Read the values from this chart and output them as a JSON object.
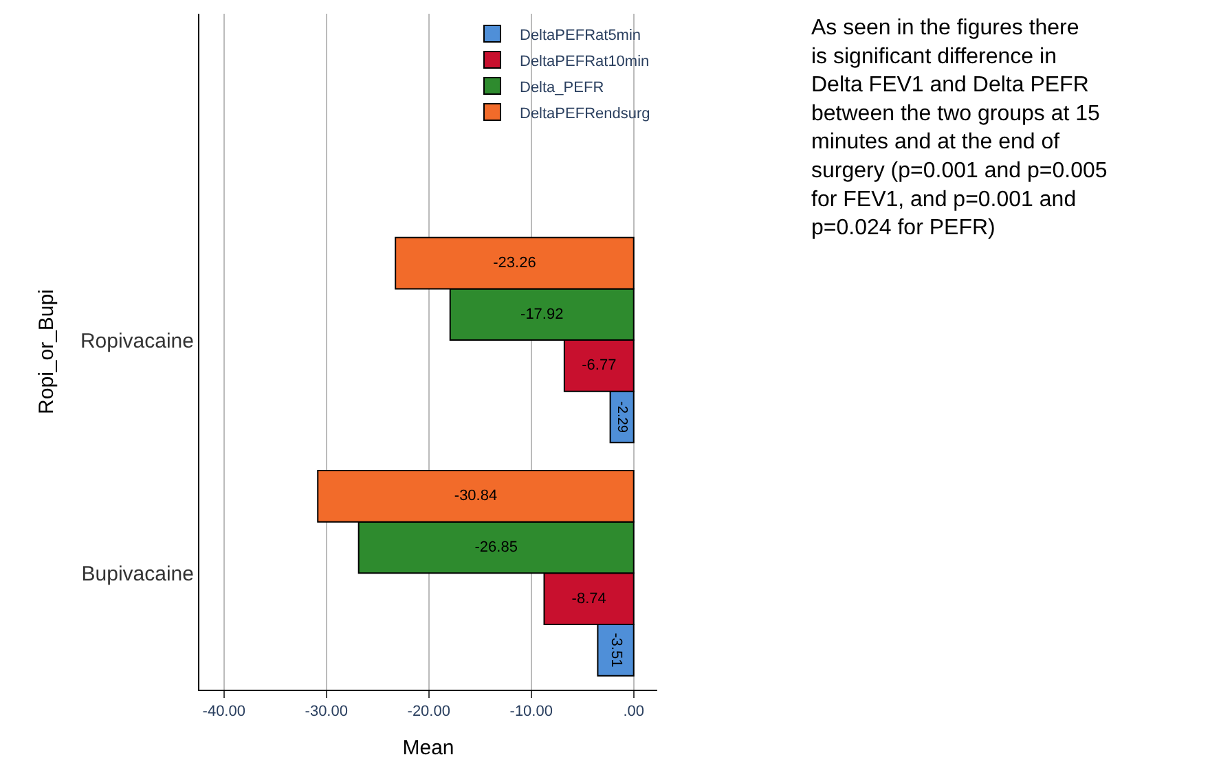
{
  "chart_data": {
    "type": "bar",
    "orientation": "horizontal",
    "categories": [
      "Ropivacaine",
      "Bupivacaine"
    ],
    "series": [
      {
        "name": "DeltaPEFRat5min",
        "color": "#4f8fd8",
        "values": [
          -2.29,
          -3.51
        ]
      },
      {
        "name": "DeltaPEFRat10min",
        "color": "#c8102e",
        "values": [
          -6.77,
          -8.74
        ]
      },
      {
        "name": "Delta_PEFR",
        "color": "#2e8b2e",
        "values": [
          -17.92,
          -26.85
        ]
      },
      {
        "name": "DeltaPEFRendsurg",
        "color": "#f26b2a",
        "values": [
          -23.26,
          -30.84
        ]
      }
    ],
    "xlim": [
      -42.4,
      2.3
    ],
    "xticks": [
      {
        "value": -40,
        "label": "-40.00"
      },
      {
        "value": -30,
        "label": "-30.00"
      },
      {
        "value": -20,
        "label": "-20.00"
      },
      {
        "value": -10,
        "label": "-10.00"
      },
      {
        "value": 0,
        "label": ".00"
      }
    ],
    "xlabel": "Mean",
    "ylabel": "Ropi_or_Bupi",
    "grid": "x",
    "legend": "top right",
    "data_labels": true,
    "annotations": [
      "As seen in the figures there is significant difference in Delta FEV1 and Delta PEFR between the two groups at 15 minutes and at the end of surgery (p=0.001 and p=0.005 for FEV1, and p=0.001 and p=0.024 for PEFR)"
    ]
  }
}
